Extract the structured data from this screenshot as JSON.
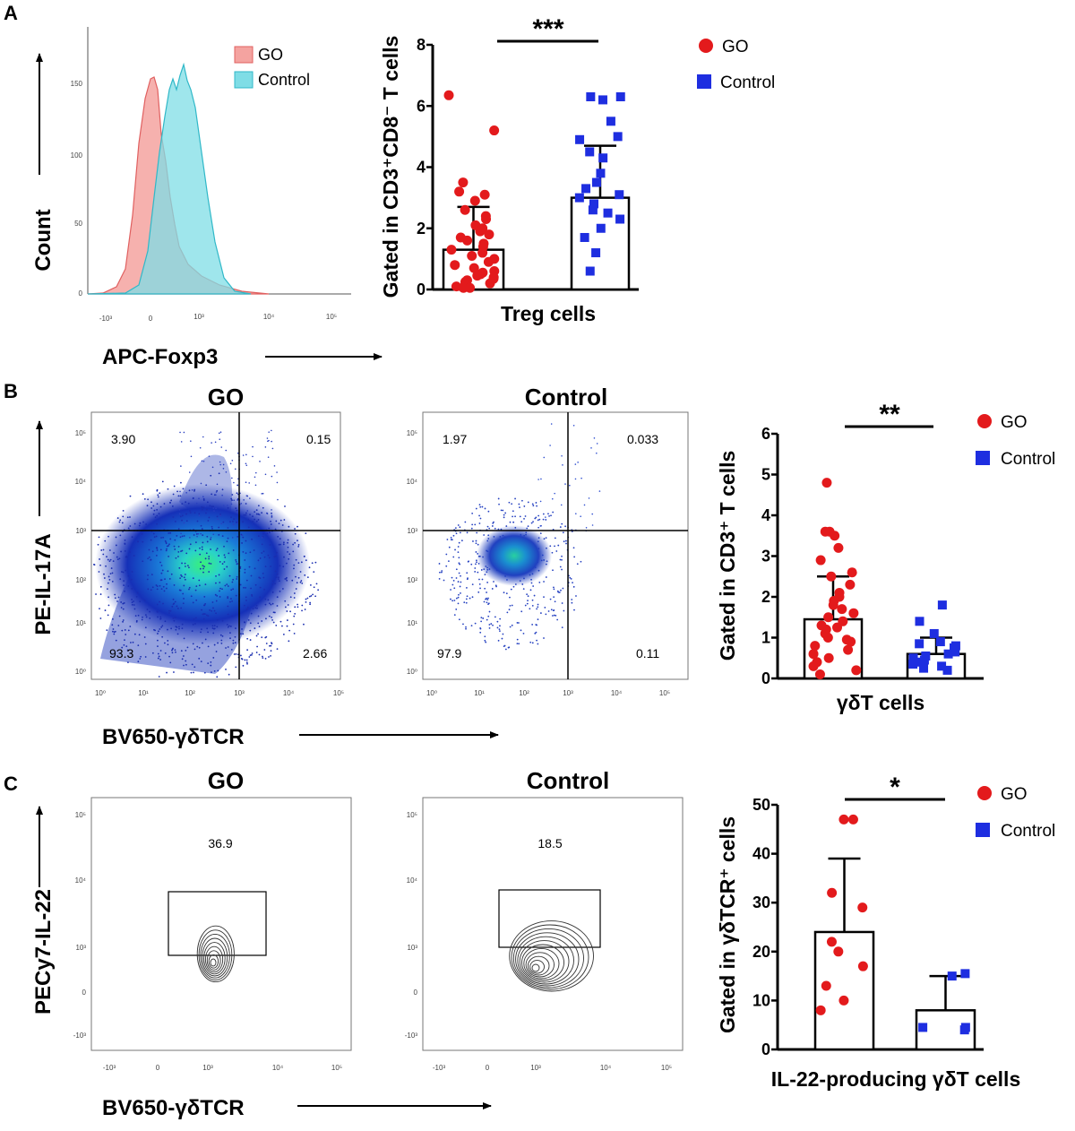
{
  "panel_labels": [
    "A",
    "B",
    "C"
  ],
  "colors": {
    "go": "#e31a1c",
    "control": "#1e2ee0",
    "hist_go_fill": "#f4a3a0",
    "hist_ctrl_fill": "#7fdde6"
  },
  "panelA": {
    "histogram": {
      "ylabel": "Count",
      "xlabel": "APC-Foxp3",
      "yticks": [
        "0",
        "50",
        "100",
        "150"
      ],
      "xticks": [
        "-10³",
        "0",
        "10³",
        "10⁴",
        "10⁵"
      ],
      "legend": [
        "GO",
        "Control"
      ]
    },
    "bar": {
      "ylabel": "Gated in CD3⁺CD8⁻ T cells",
      "xlabel": "Treg cells",
      "significance": "***",
      "legend": [
        "GO",
        "Control"
      ]
    }
  },
  "panelB": {
    "titles": [
      "GO",
      "Control"
    ],
    "ylabel": "PE-IL-17A",
    "xlabel": "BV650-γδTCR",
    "go_quadrants": [
      "3.90",
      "0.15",
      "93.3",
      "2.66"
    ],
    "ctrl_quadrants": [
      "1.97",
      "0.033",
      "97.9",
      "0.11"
    ],
    "yticks": [
      "10⁰",
      "10¹",
      "10²",
      "10³",
      "10⁴",
      "10⁵"
    ],
    "xticks": [
      "10⁰",
      "10¹",
      "10²",
      "10³",
      "10⁴",
      "10⁵"
    ],
    "bar": {
      "ylabel": "Gated in CD3⁺ T cells",
      "xlabel": "γδT cells",
      "significance": "**",
      "legend": [
        "GO",
        "Control"
      ]
    }
  },
  "panelC": {
    "titles": [
      "GO",
      "Control"
    ],
    "ylabel": "PECy7-IL-22",
    "xlabel": "BV650-γδTCR",
    "gate_values": [
      "36.9",
      "18.5"
    ],
    "yticks": [
      "10⁵",
      "10⁴",
      "10³",
      "0",
      "-10³"
    ],
    "xticks": [
      "-10³",
      "0",
      "10³",
      "10⁴",
      "10⁵"
    ],
    "bar": {
      "ylabel": "Gated in γδTCR⁺ cells",
      "xlabel": "IL-22-producing γδT cells",
      "significance": "*",
      "legend": [
        "GO",
        "Control"
      ]
    }
  },
  "chart_data": [
    {
      "type": "bar",
      "panel": "A",
      "title": "",
      "xlabel": "Treg cells",
      "ylabel": "Gated in CD3⁺CD8⁻ T cells",
      "ylim": [
        0,
        8
      ],
      "yticks": [
        0,
        2,
        4,
        6,
        8
      ],
      "categories": [
        "GO",
        "Control"
      ],
      "series": [
        {
          "name": "GO",
          "mean": 1.3,
          "sd": 1.4,
          "points": [
            6.35,
            5.2,
            3.5,
            3.2,
            3.1,
            2.9,
            2.6,
            2.4,
            2.3,
            2.1,
            2.0,
            1.9,
            1.8,
            1.7,
            1.6,
            1.5,
            1.4,
            1.3,
            1.2,
            1.1,
            1.0,
            0.9,
            0.8,
            0.7,
            0.6,
            0.55,
            0.5,
            0.45,
            0.4,
            0.35,
            0.3,
            0.25,
            0.2,
            0.15,
            0.1,
            0.05,
            0.05
          ]
        },
        {
          "name": "Control",
          "mean": 3.0,
          "sd": 1.7,
          "points": [
            6.3,
            6.3,
            6.2,
            5.5,
            5.0,
            4.9,
            4.5,
            4.3,
            3.8,
            3.5,
            3.3,
            3.1,
            3.0,
            2.8,
            2.6,
            2.5,
            2.3,
            2.0,
            1.7,
            1.2,
            0.6
          ]
        }
      ]
    },
    {
      "type": "bar",
      "panel": "B",
      "title": "",
      "xlabel": "γδT cells",
      "ylabel": "Gated in CD3⁺ T cells",
      "ylim": [
        0,
        6
      ],
      "yticks": [
        0,
        1,
        2,
        3,
        4,
        5,
        6
      ],
      "categories": [
        "GO",
        "Control"
      ],
      "series": [
        {
          "name": "GO",
          "mean": 1.45,
          "sd": 1.05,
          "points": [
            4.8,
            3.6,
            3.6,
            3.5,
            3.2,
            2.9,
            2.6,
            2.5,
            2.3,
            2.1,
            2.0,
            1.9,
            1.8,
            1.7,
            1.6,
            1.5,
            1.4,
            1.3,
            1.25,
            1.2,
            1.1,
            1.0,
            0.95,
            0.9,
            0.8,
            0.7,
            0.6,
            0.5,
            0.4,
            0.3,
            0.2,
            0.1
          ]
        },
        {
          "name": "Control",
          "mean": 0.6,
          "sd": 0.4,
          "points": [
            1.8,
            1.4,
            1.1,
            0.9,
            0.85,
            0.8,
            0.75,
            0.7,
            0.7,
            0.65,
            0.6,
            0.55,
            0.5,
            0.45,
            0.4,
            0.35,
            0.3,
            0.25,
            0.2
          ]
        }
      ]
    },
    {
      "type": "bar",
      "panel": "C",
      "title": "",
      "xlabel": "IL-22-producing γδT cells",
      "ylabel": "Gated in γδTCR⁺ cells",
      "ylim": [
        0,
        50
      ],
      "yticks": [
        0,
        10,
        20,
        30,
        40,
        50
      ],
      "categories": [
        "GO",
        "Control"
      ],
      "series": [
        {
          "name": "GO",
          "mean": 24.0,
          "sd": 15.0,
          "points": [
            47.0,
            47.0,
            32.0,
            29.0,
            22.0,
            20.0,
            17.0,
            13.0,
            10.0,
            8.0
          ]
        },
        {
          "name": "Control",
          "mean": 8.0,
          "sd": 7.0,
          "points": [
            15.5,
            15.0,
            4.5,
            4.5,
            4.0
          ]
        }
      ]
    }
  ]
}
